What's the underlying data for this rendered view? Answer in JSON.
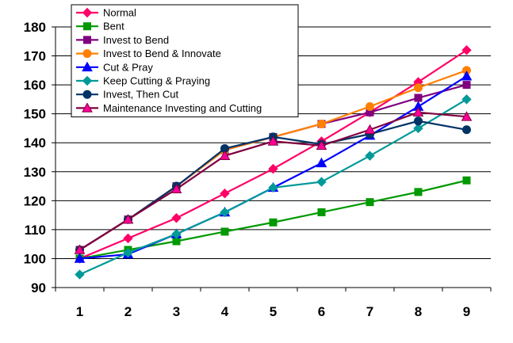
{
  "chart_data": {
    "type": "line",
    "title": "",
    "xlabel": "",
    "ylabel": "",
    "x": [
      1,
      2,
      3,
      4,
      5,
      6,
      7,
      8,
      9
    ],
    "ylim": [
      90,
      180
    ],
    "yticks": [
      90,
      100,
      110,
      120,
      130,
      140,
      150,
      160,
      170,
      180
    ],
    "grid": "horizontal",
    "legend_placement": "top-left inside plot",
    "series": [
      {
        "name": "Normal",
        "color": "#FF0066",
        "marker": "diamond",
        "values": [
          100,
          107,
          114,
          122.5,
          131,
          140.5,
          150.5,
          161,
          172
        ]
      },
      {
        "name": "Bent",
        "color": "#009900",
        "marker": "square",
        "values": [
          100,
          103,
          106,
          109.3,
          112.5,
          116,
          119.5,
          123,
          127
        ]
      },
      {
        "name": "Invest to Bend",
        "color": "#800080",
        "marker": "square",
        "values": [
          103,
          113.5,
          125,
          137.5,
          142,
          146.5,
          150.5,
          155.5,
          160
        ]
      },
      {
        "name": "Invest to Bend & Innovate",
        "color": "#FF8000",
        "marker": "circle",
        "values": [
          103,
          113.5,
          125,
          137.5,
          142,
          146.5,
          152.5,
          159,
          165
        ]
      },
      {
        "name": "Cut & Pray",
        "color": "#0000FF",
        "marker": "triangle",
        "values": [
          100,
          101.5,
          108.5,
          116,
          124.5,
          133,
          142.5,
          152.5,
          163
        ]
      },
      {
        "name": "Keep Cutting & Praying",
        "color": "#009999",
        "marker": "diamond",
        "values": [
          94.5,
          102,
          108.5,
          116,
          124.5,
          126.5,
          135.5,
          145,
          155
        ]
      },
      {
        "name": "Invest, Then Cut",
        "color": "#003366",
        "marker": "circle",
        "values": [
          103,
          113.5,
          125,
          138,
          142,
          139.5,
          143,
          147.5,
          144.5
        ]
      },
      {
        "name": "Maintenance Investing and Cutting",
        "color": "#800040",
        "marker": "triangle",
        "markerColor": "#FF0099",
        "values": [
          103,
          113.5,
          124,
          135.5,
          140.5,
          139,
          144.5,
          150.5,
          149
        ]
      }
    ]
  }
}
